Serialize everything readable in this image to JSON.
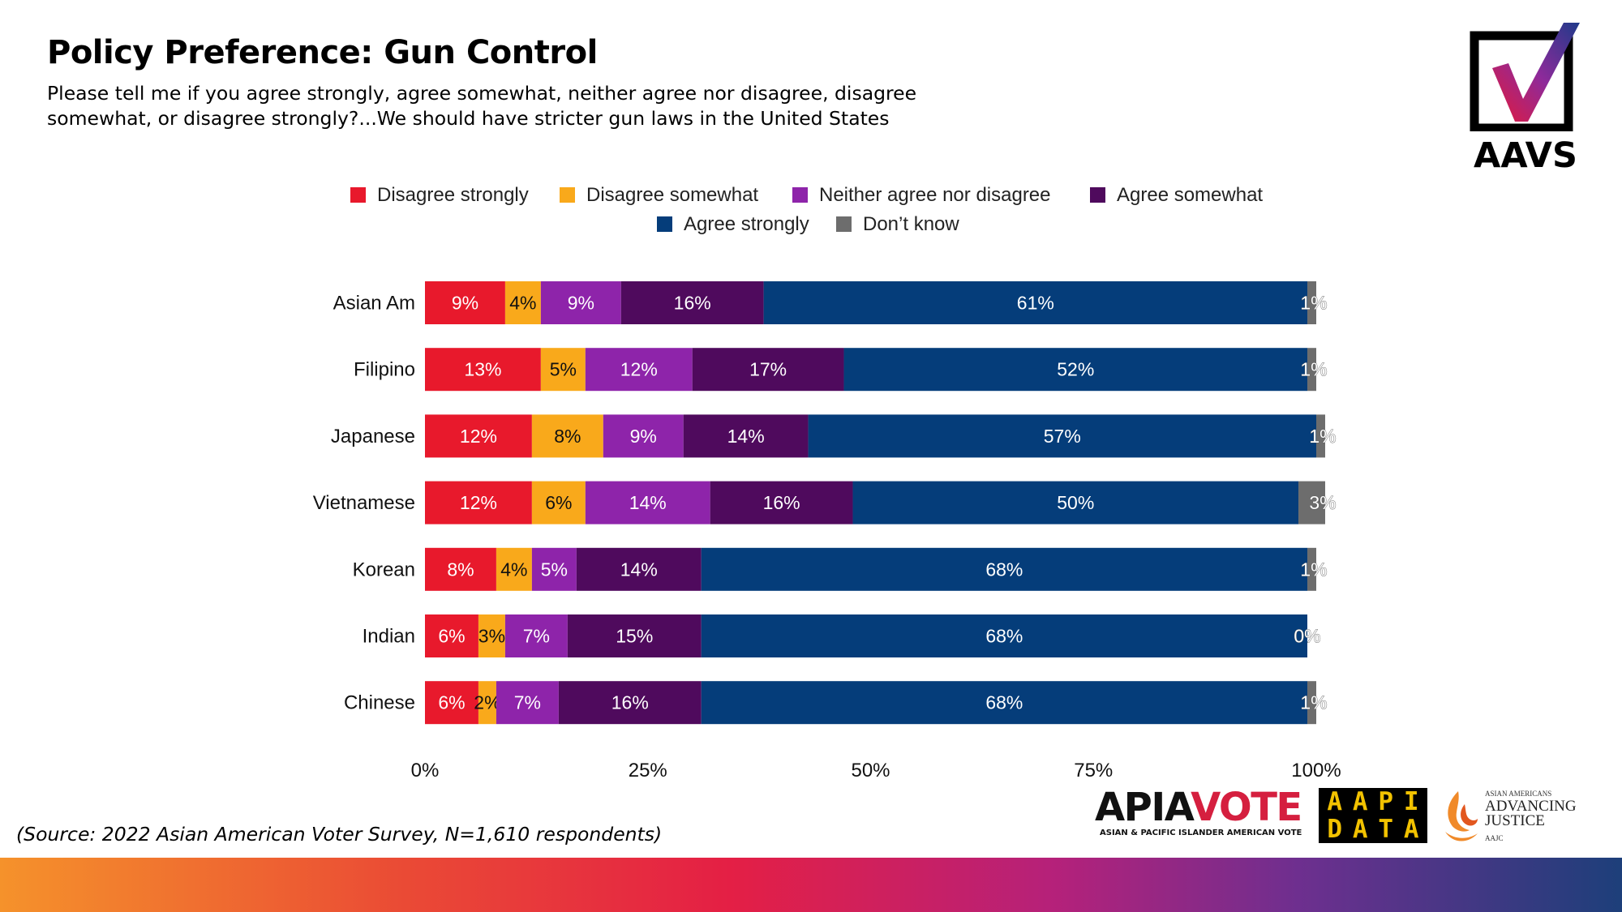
{
  "title": "Policy Preference: Gun Control",
  "subtitle": "Please tell me if you agree strongly, agree somewhat, neither agree nor disagree, disagree somewhat, or disagree strongly?...We should have stricter gun laws in the United States",
  "source": "(Source: 2022 Asian American Voter Survey, N=1,610 respondents)",
  "logos": {
    "aavs": "AAVS",
    "apiavote": {
      "apia": "APIA",
      "vote": "VOTE",
      "tagline": "ASIAN & PACIFIC ISLANDER AMERICAN VOTE"
    },
    "aapidata": [
      "A",
      "A",
      "P",
      "I",
      "D",
      "A",
      "T",
      "A"
    ],
    "aajc": {
      "line1": "ASIAN AMERICANS",
      "line2": "ADVANCING",
      "line3": "JUSTICE",
      "line4": "AAJC"
    }
  },
  "colors": {
    "disagree_strongly": "#e8192c",
    "disagree_somewhat": "#f9a91b",
    "neither": "#8e24aa",
    "agree_somewhat": "#4f0a5d",
    "agree_strongly": "#053d7a",
    "dont_know": "#6d6d6d",
    "band_start": "#f5922b",
    "band_end": "#1d3f7a"
  },
  "chart_data": {
    "type": "bar",
    "orientation": "horizontal",
    "stacked": true,
    "categories": [
      "Asian Am",
      "Filipino",
      "Japanese",
      "Vietnamese",
      "Korean",
      "Indian",
      "Chinese"
    ],
    "series": [
      {
        "name": "Disagree strongly",
        "color": "#e8192c",
        "values": [
          9,
          13,
          12,
          12,
          8,
          6,
          6
        ]
      },
      {
        "name": "Disagree somewhat",
        "color": "#f9a91b",
        "values": [
          4,
          5,
          8,
          6,
          4,
          3,
          2
        ]
      },
      {
        "name": "Neither agree nor disagree",
        "color": "#8e24aa",
        "values": [
          9,
          12,
          9,
          14,
          5,
          7,
          7
        ]
      },
      {
        "name": "Agree somewhat",
        "color": "#4f0a5d",
        "values": [
          16,
          17,
          14,
          16,
          14,
          15,
          16
        ]
      },
      {
        "name": "Agree strongly",
        "color": "#053d7a",
        "values": [
          61,
          52,
          57,
          50,
          68,
          68,
          68
        ]
      },
      {
        "name": "Don’t know",
        "color": "#6d6d6d",
        "values": [
          1,
          1,
          1,
          3,
          1,
          0,
          1
        ]
      }
    ],
    "label_suffix": "%",
    "xlim": [
      0,
      100
    ],
    "xticks": [
      "0%",
      "25%",
      "50%",
      "75%",
      "100%"
    ],
    "legend_position": "top",
    "grid": false
  }
}
